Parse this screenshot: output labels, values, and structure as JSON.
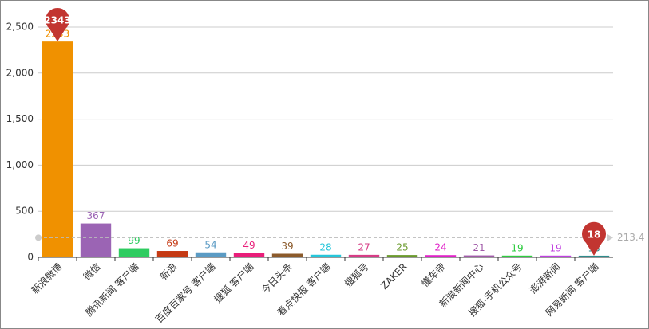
{
  "chart_data": {
    "type": "bar",
    "categories": [
      "新浪微博",
      "微信",
      "腾讯新闻 客户端",
      "新浪",
      "百度百家号 客户端",
      "搜狐 客户端",
      "今日头条",
      "看点快报 客户端",
      "搜狐号",
      "ZAKER",
      "懂车帝",
      "新浪新闻中心",
      "搜狐-手机公众号",
      "澎湃新闻",
      "网易新闻 客户端"
    ],
    "values": [
      2343,
      367,
      99,
      69,
      54,
      49,
      39,
      28,
      27,
      25,
      24,
      21,
      19,
      19,
      18
    ],
    "colors": [
      "#f09100",
      "#9b64b4",
      "#2ecc60",
      "#c53a14",
      "#5b9bc4",
      "#e91e7a",
      "#8b5a2b",
      "#26c6da",
      "#d63c86",
      "#6a9a2c",
      "#e020c8",
      "#a05aa8",
      "#2ecc40",
      "#c040e0",
      "#2e8b8b"
    ],
    "ylim": [
      0,
      2500
    ],
    "yticks": [
      0,
      500,
      {
        "value": 1000,
        "label": "1,000"
      },
      {
        "value": 1500,
        "label": "1,500"
      },
      {
        "value": 2000,
        "label": "2,000"
      },
      {
        "value": 2500,
        "label": "2,500"
      }
    ],
    "grid": true,
    "mark_points": [
      2343,
      18
    ],
    "mark_line": 213.4
  }
}
